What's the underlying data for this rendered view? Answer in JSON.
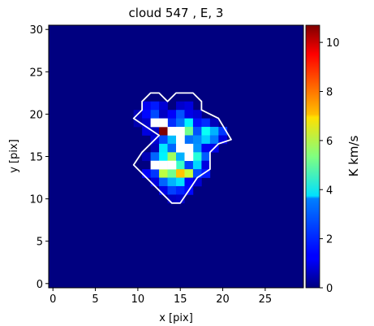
{
  "chart_data": {
    "type": "heatmap",
    "title": "cloud 547 , E, 3",
    "xlabel": "x [pix]",
    "ylabel": "y [pix]",
    "xlim": [
      -0.5,
      29.5
    ],
    "ylim": [
      -0.5,
      30.5
    ],
    "xticks": [
      0,
      5,
      10,
      15,
      20,
      25
    ],
    "yticks": [
      0,
      5,
      10,
      15,
      20,
      25,
      30
    ],
    "colorbar": {
      "label": "K km/s",
      "colormap": "jet",
      "vmin": 0,
      "vmax": 10.7,
      "ticks": [
        0,
        2,
        4,
        6,
        8,
        10
      ]
    },
    "background_value": 0,
    "contour_color": "#ffffff",
    "pixels": [
      {
        "x": 11,
        "y": 21,
        "v": 1.2
      },
      {
        "x": 12,
        "y": 21,
        "v": 1.6
      },
      {
        "x": 13,
        "y": 21,
        "v": 0.9
      },
      {
        "x": 15,
        "y": 21,
        "v": 0.8
      },
      {
        "x": 16,
        "y": 21,
        "v": 1.0
      },
      {
        "x": 10,
        "y": 20,
        "v": 0.6
      },
      {
        "x": 11,
        "y": 20,
        "v": 1.4
      },
      {
        "x": 12,
        "y": 20,
        "v": 2.1
      },
      {
        "x": 13,
        "y": 20,
        "v": 0.7
      },
      {
        "x": 14,
        "y": 20,
        "v": 1.3
      },
      {
        "x": 15,
        "y": 20,
        "v": 2.2
      },
      {
        "x": 16,
        "y": 20,
        "v": 1.1
      },
      {
        "x": 17,
        "y": 20,
        "v": 0.9
      },
      {
        "x": 10,
        "y": 19,
        "v": 0.5
      },
      {
        "x": 11,
        "y": 19,
        "v": 0.8
      },
      {
        "x": 12,
        "y": 19,
        "v": 1.6
      },
      {
        "x": 13,
        "y": 19,
        "v": 2.3
      },
      {
        "x": 14,
        "y": 19,
        "v": 1.8
      },
      {
        "x": 15,
        "y": 19,
        "v": 2.5
      },
      {
        "x": 16,
        "y": 19,
        "v": 3.9
      },
      {
        "x": 17,
        "y": 19,
        "v": 1.5
      },
      {
        "x": 18,
        "y": 19,
        "v": 1.8
      },
      {
        "x": 19,
        "y": 19,
        "v": 0.6
      },
      {
        "x": 11,
        "y": 18,
        "v": 1.0
      },
      {
        "x": 12,
        "y": 18,
        "v": 0.7
      },
      {
        "x": 13,
        "y": 18,
        "v": 10.7
      },
      {
        "x": 14,
        "y": 18,
        "v": 3.4
      },
      {
        "x": 16,
        "y": 18,
        "v": 5.2
      },
      {
        "x": 17,
        "y": 18,
        "v": 2.2
      },
      {
        "x": 18,
        "y": 18,
        "v": 4.1
      },
      {
        "x": 19,
        "y": 18,
        "v": 3.2
      },
      {
        "x": 20,
        "y": 18,
        "v": 1.9
      },
      {
        "x": 12,
        "y": 17,
        "v": 0.9
      },
      {
        "x": 13,
        "y": 17,
        "v": 2.1
      },
      {
        "x": 14,
        "y": 17,
        "v": 3.3
      },
      {
        "x": 15,
        "y": 17,
        "v": 1.7
      },
      {
        "x": 16,
        "y": 17,
        "v": 2.5
      },
      {
        "x": 17,
        "y": 17,
        "v": 2.8
      },
      {
        "x": 18,
        "y": 17,
        "v": 3.5
      },
      {
        "x": 19,
        "y": 17,
        "v": 2.6
      },
      {
        "x": 20,
        "y": 17,
        "v": 1.0
      },
      {
        "x": 12,
        "y": 16,
        "v": 0.6
      },
      {
        "x": 13,
        "y": 16,
        "v": 3.8
      },
      {
        "x": 14,
        "y": 16,
        "v": 2.4
      },
      {
        "x": 15,
        "y": 16,
        "v": 1.5
      },
      {
        "x": 17,
        "y": 16,
        "v": 2.9
      },
      {
        "x": 18,
        "y": 16,
        "v": 1.2
      },
      {
        "x": 19,
        "y": 16,
        "v": 1.1
      },
      {
        "x": 11,
        "y": 15,
        "v": 0.6
      },
      {
        "x": 12,
        "y": 15,
        "v": 2.4
      },
      {
        "x": 13,
        "y": 15,
        "v": 3.9
      },
      {
        "x": 14,
        "y": 15,
        "v": 5.7
      },
      {
        "x": 15,
        "y": 15,
        "v": 3.2
      },
      {
        "x": 17,
        "y": 15,
        "v": 4.4
      },
      {
        "x": 18,
        "y": 15,
        "v": 2.3
      },
      {
        "x": 15,
        "y": 14,
        "v": 4.6
      },
      {
        "x": 16,
        "y": 14,
        "v": 2.0
      },
      {
        "x": 17,
        "y": 14,
        "v": 3.6
      },
      {
        "x": 18,
        "y": 14,
        "v": 1.0
      },
      {
        "x": 11,
        "y": 13,
        "v": 1.3
      },
      {
        "x": 12,
        "y": 13,
        "v": 1.9
      },
      {
        "x": 13,
        "y": 13,
        "v": 6.0
      },
      {
        "x": 14,
        "y": 13,
        "v": 5.2
      },
      {
        "x": 15,
        "y": 13,
        "v": 7.3
      },
      {
        "x": 16,
        "y": 13,
        "v": 6.1
      },
      {
        "x": 17,
        "y": 13,
        "v": 2.1
      },
      {
        "x": 18,
        "y": 13,
        "v": 1.6
      },
      {
        "x": 12,
        "y": 12,
        "v": 1.0
      },
      {
        "x": 13,
        "y": 12,
        "v": 2.4
      },
      {
        "x": 14,
        "y": 12,
        "v": 3.2
      },
      {
        "x": 15,
        "y": 12,
        "v": 3.7
      },
      {
        "x": 16,
        "y": 12,
        "v": 1.3
      },
      {
        "x": 17,
        "y": 12,
        "v": 0.9
      },
      {
        "x": 13,
        "y": 11,
        "v": 1.1
      },
      {
        "x": 14,
        "y": 11,
        "v": 2.0
      },
      {
        "x": 15,
        "y": 11,
        "v": 1.7
      },
      {
        "x": 16,
        "y": 11,
        "v": 1.4
      },
      {
        "x": 14,
        "y": 10,
        "v": 0.7
      },
      {
        "x": 15,
        "y": 10,
        "v": 0.8
      },
      {
        "x": 12,
        "y": 19,
        "v": 0.0,
        "white": true
      },
      {
        "x": 13,
        "y": 19,
        "v": 0.0,
        "white": true
      },
      {
        "x": 15,
        "y": 17,
        "v": 0.0,
        "white": true
      },
      {
        "x": 15,
        "y": 16,
        "v": 0.0,
        "white": true
      },
      {
        "x": 16,
        "y": 16,
        "v": 0.0,
        "white": true
      },
      {
        "x": 16,
        "y": 15,
        "v": 0.0,
        "white": true
      },
      {
        "x": 14,
        "y": 18,
        "v": 0.0,
        "white": true
      },
      {
        "x": 15,
        "y": 18,
        "v": 0.0,
        "white": true
      },
      {
        "x": 12,
        "y": 14,
        "v": 0.0,
        "white": true
      },
      {
        "x": 13,
        "y": 14,
        "v": 0.0,
        "white": true
      },
      {
        "x": 14,
        "y": 14,
        "v": 0.0,
        "white": true
      }
    ],
    "contour": [
      [
        10.5,
        21.5
      ],
      [
        11.5,
        22.5
      ],
      [
        12.5,
        22.5
      ],
      [
        13.5,
        21.5
      ],
      [
        14.5,
        22.5
      ],
      [
        16.5,
        22.5
      ],
      [
        17.5,
        21.5
      ],
      [
        17.5,
        20.5
      ],
      [
        19.5,
        19.5
      ],
      [
        21,
        17
      ],
      [
        19.5,
        16.5
      ],
      [
        18.5,
        15.5
      ],
      [
        18.5,
        13.5
      ],
      [
        17,
        12.5
      ],
      [
        16,
        11
      ],
      [
        15,
        9.5
      ],
      [
        14,
        9.5
      ],
      [
        9.5,
        14
      ],
      [
        10.5,
        15.5
      ],
      [
        12.5,
        17.5
      ],
      [
        9.5,
        19.5
      ],
      [
        10.5,
        20.5
      ]
    ]
  }
}
